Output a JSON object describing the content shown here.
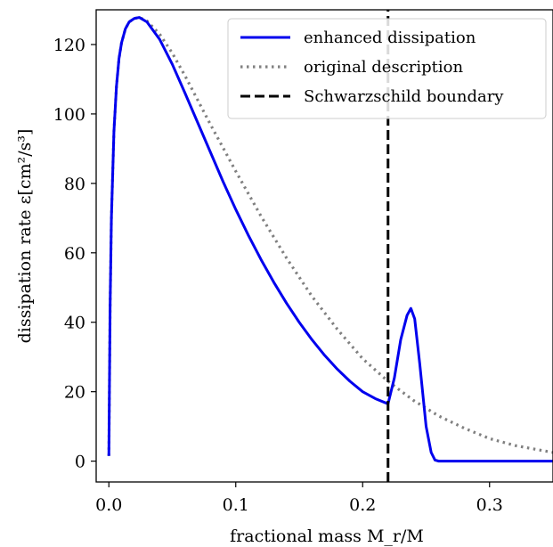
{
  "chart_data": {
    "type": "line",
    "title": "",
    "xlabel": "fractional mass M_r/M",
    "ylabel": "dissipation rate ε[cm²/s³]",
    "xlim": [
      -0.01,
      0.35
    ],
    "ylim": [
      -6,
      130
    ],
    "xticks": [
      0.0,
      0.1,
      0.2,
      0.3
    ],
    "xtick_labels": [
      "0.0",
      "0.1",
      "0.2",
      "0.3"
    ],
    "yticks": [
      0,
      20,
      40,
      60,
      80,
      100,
      120
    ],
    "ytick_labels": [
      "0",
      "20",
      "40",
      "60",
      "80",
      "100",
      "120"
    ],
    "grid": false,
    "legend_position": "top-right",
    "series": [
      {
        "name": "enhanced dissipation",
        "color": "#0000ee",
        "style": "solid",
        "x": [
          0.0,
          0.001,
          0.002,
          0.004,
          0.006,
          0.008,
          0.01,
          0.013,
          0.016,
          0.02,
          0.024,
          0.03,
          0.04,
          0.05,
          0.06,
          0.07,
          0.08,
          0.09,
          0.1,
          0.11,
          0.12,
          0.13,
          0.14,
          0.15,
          0.16,
          0.17,
          0.18,
          0.19,
          0.2,
          0.21,
          0.22,
          0.225,
          0.23,
          0.235,
          0.238,
          0.241,
          0.245,
          0.25,
          0.254,
          0.257,
          0.26,
          0.3,
          0.35
        ],
        "y": [
          1.5,
          45,
          70,
          95,
          108,
          116,
          120.5,
          124.5,
          126.5,
          127.5,
          127.8,
          126.5,
          121.5,
          114.3,
          106,
          97.5,
          89,
          80.5,
          72.5,
          65,
          58,
          51.5,
          45.5,
          40,
          35,
          30.5,
          26.5,
          23,
          20,
          18,
          16.5,
          24,
          35,
          42,
          44,
          41,
          28,
          10,
          2.5,
          0.3,
          0,
          0,
          0
        ]
      },
      {
        "name": "original description",
        "color": "#808080",
        "style": "dotted",
        "x": [
          0.0,
          0.001,
          0.002,
          0.004,
          0.006,
          0.008,
          0.01,
          0.013,
          0.016,
          0.02,
          0.024,
          0.03,
          0.04,
          0.05,
          0.06,
          0.07,
          0.08,
          0.1,
          0.12,
          0.14,
          0.16,
          0.18,
          0.2,
          0.22,
          0.24,
          0.26,
          0.28,
          0.3,
          0.32,
          0.35
        ],
        "y": [
          1.5,
          45,
          70,
          95,
          108,
          116,
          120.5,
          124.5,
          126.5,
          127.5,
          127.8,
          126.8,
          123,
          117.5,
          111,
          104,
          97,
          83.5,
          70.5,
          58.5,
          47.5,
          38,
          29.5,
          23,
          17.5,
          13,
          9.5,
          6.5,
          4.5,
          2.5
        ]
      },
      {
        "name": "Schwarzschild boundary",
        "color": "#000000",
        "style": "dashed",
        "x": [
          0.22,
          0.22
        ],
        "y": [
          -6,
          130
        ]
      }
    ]
  }
}
